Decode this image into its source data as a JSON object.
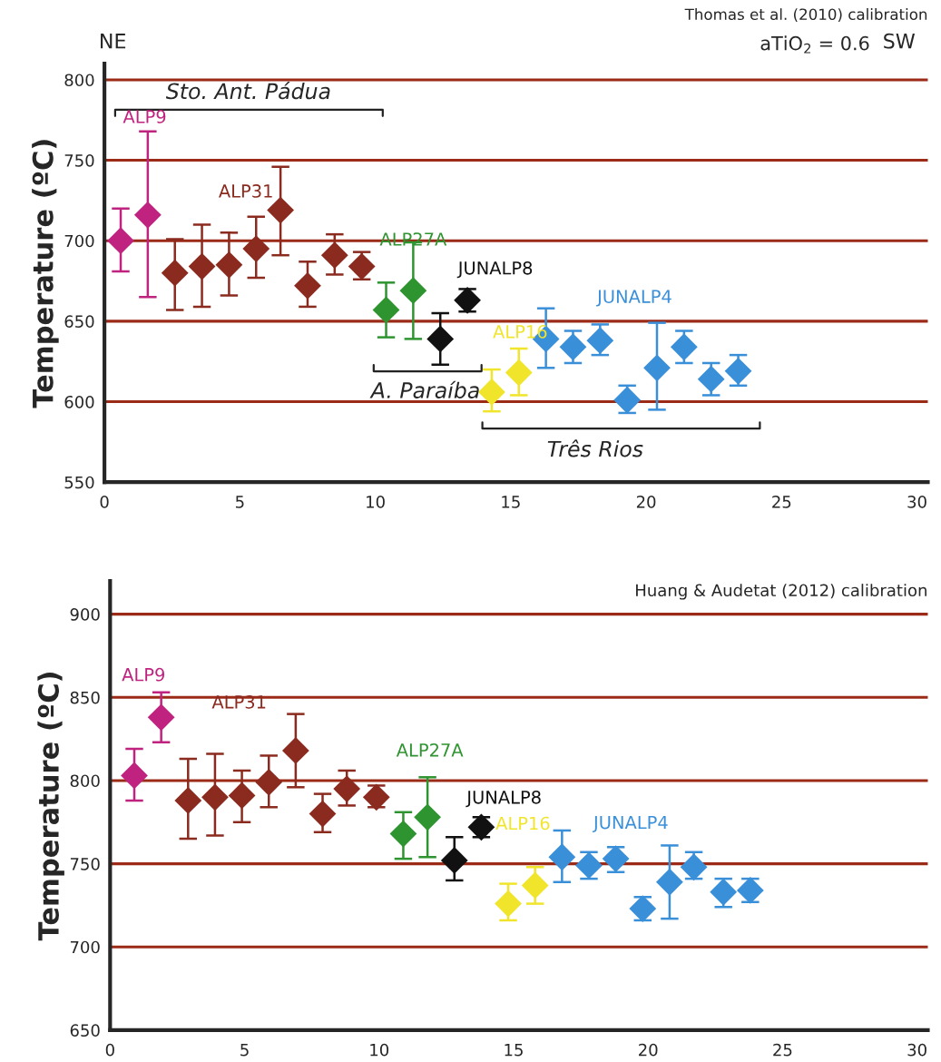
{
  "chart_data": [
    {
      "type": "scatter",
      "ylabel": "Temperature (ºC)",
      "xlim": [
        0,
        30.4
      ],
      "ylim": [
        550,
        810
      ],
      "xticks": [
        0,
        5,
        10,
        15,
        20,
        25,
        30
      ],
      "yticks": [
        550,
        600,
        650,
        700,
        750,
        800
      ],
      "marker": "diamond",
      "series": [
        {
          "name": "ALP9",
          "color": "#c0237f",
          "x": [
            0.6,
            1.6
          ],
          "values": [
            700,
            716
          ],
          "errors": [
            [
              681,
              720
            ],
            [
              665,
              768
            ]
          ]
        },
        {
          "name": "ALP31",
          "color": "#8b2a1e",
          "x": [
            2.6,
            3.6,
            4.6,
            5.6,
            6.5,
            7.5,
            8.5,
            9.5
          ],
          "values": [
            680,
            684,
            685,
            695,
            719,
            672,
            691,
            684
          ],
          "errors": [
            [
              657,
              701
            ],
            [
              659,
              710
            ],
            [
              666,
              705
            ],
            [
              677,
              715
            ],
            [
              691,
              746
            ],
            [
              659,
              687
            ],
            [
              679,
              704
            ],
            [
              676,
              693
            ]
          ]
        },
        {
          "name": "ALP27A",
          "color": "#2e9430",
          "x": [
            10.4,
            11.4
          ],
          "values": [
            657,
            669
          ],
          "errors": [
            [
              640,
              674
            ],
            [
              639,
              699
            ]
          ]
        },
        {
          "name": "JUNALP8",
          "color": "#111111",
          "x": [
            12.4,
            13.4
          ],
          "values": [
            639,
            663
          ],
          "errors": [
            [
              623,
              655
            ],
            [
              656,
              670
            ]
          ]
        },
        {
          "name": "ALP16",
          "color": "#f0e52a",
          "x": [
            14.3,
            15.3
          ],
          "values": [
            606,
            618
          ],
          "errors": [
            [
              594,
              620
            ],
            [
              604,
              633
            ]
          ]
        },
        {
          "name": "JUNALP4",
          "color": "#3a8fd9",
          "x": [
            16.3,
            17.3,
            18.3,
            19.3,
            20.4,
            21.4,
            22.4,
            23.4
          ],
          "values": [
            639,
            634,
            638,
            601,
            621,
            634,
            614,
            619
          ],
          "errors": [
            [
              621,
              658
            ],
            [
              624,
              644
            ],
            [
              629,
              648
            ],
            [
              593,
              610
            ],
            [
              595,
              649
            ],
            [
              624,
              644
            ],
            [
              604,
              624
            ],
            [
              610,
              629
            ]
          ]
        }
      ],
      "ref_lines": [
        {
          "axis": "y",
          "value": 600,
          "color": "#9b2a17"
        },
        {
          "axis": "y",
          "value": 650,
          "color": "#9b2a17"
        },
        {
          "axis": "y",
          "value": 700,
          "color": "#9b2a17"
        },
        {
          "axis": "y",
          "value": 750,
          "color": "#9b2a17"
        },
        {
          "axis": "y",
          "value": 800,
          "color": "#9b2a17"
        }
      ],
      "annotations": [
        "NE",
        "SW",
        "Thomas et al. (2010) calibration",
        "aTiO$_{2}$ = 0.6",
        "Sto. Ant. Pádua",
        "A. Paraíba",
        "Três Rios"
      ]
    },
    {
      "type": "scatter",
      "ylabel": "Temperature (ºC)",
      "xlim": [
        0,
        30.4
      ],
      "ylim": [
        650,
        920
      ],
      "xticks": [
        0,
        5,
        10,
        15,
        20,
        25,
        30
      ],
      "yticks": [
        650,
        700,
        750,
        800,
        850,
        900
      ],
      "marker": "diamond",
      "series": [
        {
          "name": "ALP9",
          "color": "#c0237f",
          "x": [
            0.9,
            1.9
          ],
          "values": [
            803,
            838
          ],
          "errors": [
            [
              788,
              819
            ],
            [
              823,
              853
            ]
          ]
        },
        {
          "name": "ALP31",
          "color": "#8b2a1e",
          "x": [
            2.9,
            3.9,
            4.9,
            5.9,
            6.9,
            7.9,
            8.8,
            9.9
          ],
          "values": [
            788,
            790,
            791,
            799,
            818,
            780,
            795,
            790
          ],
          "errors": [
            [
              765,
              813
            ],
            [
              767,
              816
            ],
            [
              775,
              806
            ],
            [
              784,
              815
            ],
            [
              796,
              840
            ],
            [
              769,
              792
            ],
            [
              785,
              806
            ],
            [
              784,
              797
            ]
          ]
        },
        {
          "name": "ALP27A",
          "color": "#2e9430",
          "x": [
            10.9,
            11.8
          ],
          "values": [
            768,
            778
          ],
          "errors": [
            [
              753,
              781
            ],
            [
              754,
              802
            ]
          ]
        },
        {
          "name": "JUNALP8",
          "color": "#111111",
          "x": [
            12.8,
            13.8
          ],
          "values": [
            752,
            772
          ],
          "errors": [
            [
              740,
              766
            ],
            [
              766,
              778
            ]
          ]
        },
        {
          "name": "ALP16",
          "color": "#f0e52a",
          "x": [
            14.8,
            15.8
          ],
          "values": [
            726,
            737
          ],
          "errors": [
            [
              716,
              738
            ],
            [
              726,
              748
            ]
          ]
        },
        {
          "name": "JUNALP4",
          "color": "#3a8fd9",
          "x": [
            16.8,
            17.8,
            18.8,
            19.8,
            20.8,
            21.7,
            22.8,
            23.8
          ],
          "values": [
            754,
            749,
            753,
            723,
            739,
            748,
            733,
            734
          ],
          "errors": [
            [
              739,
              770
            ],
            [
              741,
              757
            ],
            [
              745,
              760
            ],
            [
              716,
              730
            ],
            [
              717,
              761
            ],
            [
              741,
              757
            ],
            [
              724,
              741
            ],
            [
              727,
              741
            ]
          ]
        }
      ],
      "ref_lines": [
        {
          "axis": "y",
          "value": 700,
          "color": "#9b2a17"
        },
        {
          "axis": "y",
          "value": 750,
          "color": "#9b2a17"
        },
        {
          "axis": "y",
          "value": 800,
          "color": "#9b2a17"
        },
        {
          "axis": "y",
          "value": 850,
          "color": "#9b2a17"
        },
        {
          "axis": "y",
          "value": 900,
          "color": "#9b2a17"
        }
      ],
      "annotations": [
        "Huang & Audetat (2012) calibration"
      ]
    }
  ]
}
